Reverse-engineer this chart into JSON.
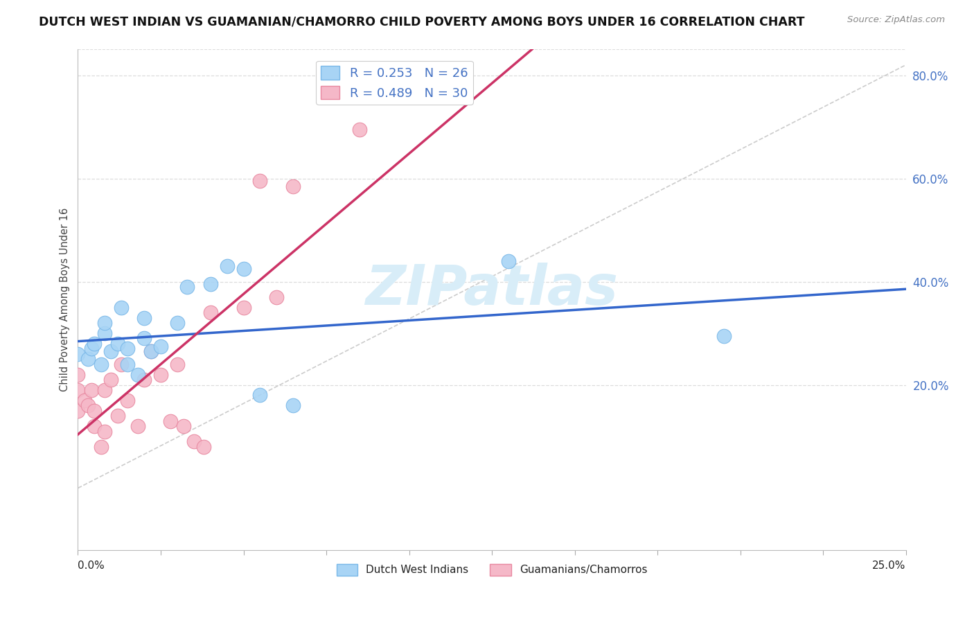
{
  "title": "DUTCH WEST INDIAN VS GUAMANIAN/CHAMORRO CHILD POVERTY AMONG BOYS UNDER 16 CORRELATION CHART",
  "source": "Source: ZipAtlas.com",
  "ylabel": "Child Poverty Among Boys Under 16",
  "xmin": 0.0,
  "xmax": 0.25,
  "ymin": -0.12,
  "ymax": 0.85,
  "right_yticks": [
    0.2,
    0.4,
    0.6,
    0.8
  ],
  "right_yticklabels": [
    "20.0%",
    "40.0%",
    "60.0%",
    "80.0%"
  ],
  "blue_label": "Dutch West Indians",
  "pink_label": "Guamanians/Chamorros",
  "blue_R": 0.253,
  "blue_N": 26,
  "pink_R": 0.489,
  "pink_N": 30,
  "blue_color": "#a8d4f5",
  "pink_color": "#f5b8c8",
  "blue_edge": "#7ab8e8",
  "pink_edge": "#e888a0",
  "blue_line_color": "#3366cc",
  "pink_line_color": "#cc3366",
  "ref_line_color": "#cccccc",
  "grid_color": "#dddddd",
  "background_color": "#ffffff",
  "watermark": "ZIPatlas",
  "watermark_color": "#d8edf8",
  "blue_scatter_x": [
    0.0,
    0.003,
    0.004,
    0.005,
    0.007,
    0.008,
    0.008,
    0.01,
    0.012,
    0.013,
    0.015,
    0.015,
    0.018,
    0.02,
    0.02,
    0.022,
    0.025,
    0.03,
    0.033,
    0.04,
    0.045,
    0.05,
    0.055,
    0.065,
    0.13,
    0.195
  ],
  "blue_scatter_y": [
    0.26,
    0.25,
    0.27,
    0.28,
    0.24,
    0.3,
    0.32,
    0.265,
    0.28,
    0.35,
    0.24,
    0.27,
    0.22,
    0.29,
    0.33,
    0.265,
    0.275,
    0.32,
    0.39,
    0.395,
    0.43,
    0.425,
    0.18,
    0.16,
    0.44,
    0.295
  ],
  "pink_scatter_x": [
    0.0,
    0.0,
    0.0,
    0.002,
    0.003,
    0.004,
    0.005,
    0.005,
    0.007,
    0.008,
    0.008,
    0.01,
    0.012,
    0.013,
    0.015,
    0.018,
    0.02,
    0.022,
    0.025,
    0.028,
    0.03,
    0.032,
    0.035,
    0.038,
    0.04,
    0.05,
    0.055,
    0.06,
    0.065,
    0.085
  ],
  "pink_scatter_y": [
    0.22,
    0.19,
    0.15,
    0.17,
    0.16,
    0.19,
    0.12,
    0.15,
    0.08,
    0.11,
    0.19,
    0.21,
    0.14,
    0.24,
    0.17,
    0.12,
    0.21,
    0.265,
    0.22,
    0.13,
    0.24,
    0.12,
    0.09,
    0.08,
    0.34,
    0.35,
    0.595,
    0.37,
    0.585,
    0.695
  ]
}
